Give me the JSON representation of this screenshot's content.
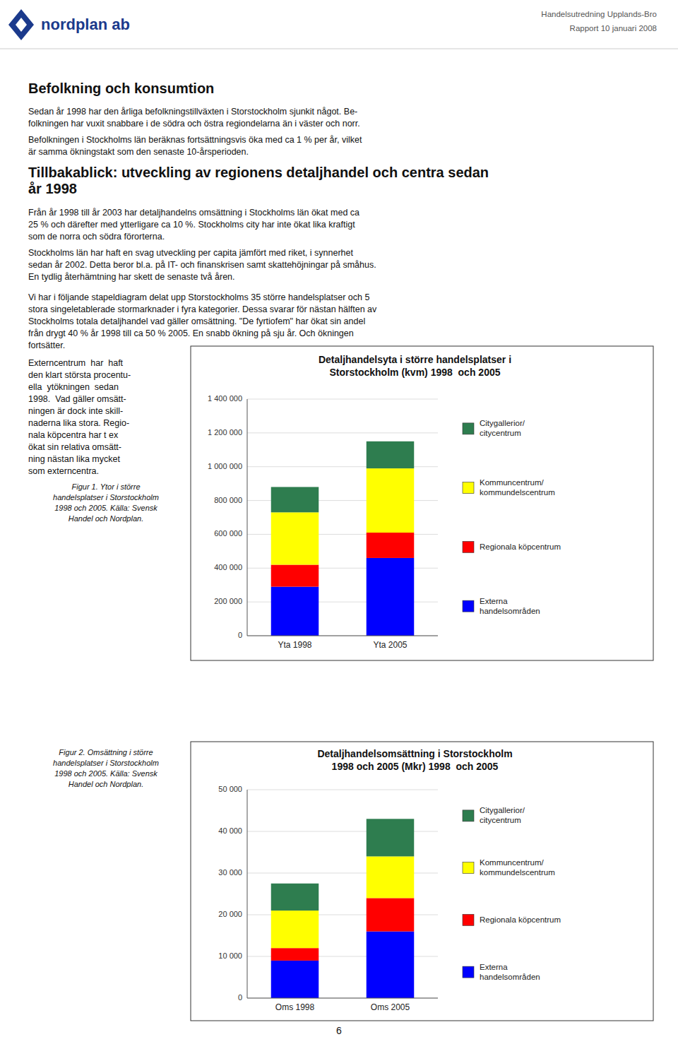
{
  "page": {
    "logo": "nordplan ab",
    "header_right_line1": "Handelsutredning Upplands-Bro",
    "header_right_line2": "Rapport 10 januari 2008",
    "heading": "Befolkning och konsumtion",
    "para1_lines": [
      "Sedan år 1998 har den årliga befolkningstillväxten i Storstockholm sjunkit något. Be-",
      "folkningen har vuxit snabbare i de södra och östra regiondelarna än i väster och norr."
    ],
    "para2_lines": [
      "Befolkningen i Stockholms län beräknas fortsättningsvis öka med ca 1 % per år, vilket",
      "är samma ökningstakt som den senaste 10-årsperioden."
    ],
    "section_heading_line1": "Tillbakablick: utveckling av regionens detaljhandel och centra sedan",
    "section_heading_line2": "år 1998",
    "para3_lines": [
      "Från år 1998 till år 2003 har detaljhandelns omsättning i Stockholms län ökat med ca",
      "25 % och därefter med ytterligare ca 10 %. Stockholms city har inte ökat lika kraftigt",
      "som de norra och södra förorterna."
    ],
    "para4_lines": [
      "Stockholms län har haft en svag utveckling per capita jämfört med riket, i synnerhet",
      "sedan år 2002. Detta beror bl.a. på IT- och finanskrisen samt skattehöjningar på småhus.",
      "En tydlig återhämtning har skett de senaste två åren."
    ],
    "para5_lines": [
      "Vi har i följande stapeldiagram delat upp Storstockholms 35 större handelsplatser och 5",
      "stora singeletablerade stormarknader i fyra kategorier. Dessa svarar för nästan hälften av",
      "Stockholms totala detaljhandel vad gäller omsättning. \"De fyrtiofem\" har ökat sin andel",
      "från drygt 40 % år 1998 till ca 50 % 2005. En snabb ökning på sju år. Och ökningen",
      "fortsätter."
    ],
    "left_col1_lines": [
      "Externcentrum  har  haft",
      "den klart största procentu-",
      "ella  ytökningen  sedan",
      "1998.  Vad gäller omsätt-",
      "ningen är dock inte skill-",
      "naderna lika stora. Regio-",
      "nala köpcentra har t ex",
      "ökat sin relativa omsätt-",
      "ning nästan lika mycket",
      "som externcentra."
    ],
    "fig1_caption_lines": [
      "Figur 1. Ytor i större",
      "handelsplatser i Storstockholm",
      "1998 och 2005. Källa: Svensk",
      "Handel och Nordplan."
    ],
    "fig2_caption_lines": [
      "Figur 2. Omsättning i större",
      "handelsplatser i Storstockholm",
      "1998 och 2005. Källa: Svensk",
      "Handel och Nordplan."
    ],
    "page_number": "6"
  },
  "chart_data": [
    {
      "type": "bar",
      "stacked": true,
      "grid": true,
      "legend": "right",
      "title": "Detaljhandelsyta i större handelsplatser i\nStorstockholm (kvm) 1998  och 2005",
      "categories": [
        "Yta 1998",
        "Yta 2005"
      ],
      "series": [
        {
          "name": "Externa\nhandelsområden",
          "color": "#0000FF",
          "values": [
            290000,
            460000
          ]
        },
        {
          "name": "Regionala köpcentrum",
          "color": "#FF0000",
          "values": [
            130000,
            150000
          ]
        },
        {
          "name": "Kommuncentrum/\nkommundelscentrum",
          "color": "#FFFF00",
          "values": [
            310000,
            380000
          ]
        },
        {
          "name": "Citygallerior/\ncitycentrum",
          "color": "#2E7D4F",
          "values": [
            150000,
            160000
          ]
        }
      ],
      "ylim": [
        0,
        1400000
      ],
      "yticks": [
        0,
        {
          "value": 200000,
          "label": "200 000"
        },
        {
          "value": 400000,
          "label": "400 000"
        },
        {
          "value": 600000,
          "label": "600 000"
        },
        {
          "value": 800000,
          "label": "800 000"
        },
        {
          "value": 1000000,
          "label": "1 000 000"
        },
        {
          "value": 1200000,
          "label": "1 200 000"
        },
        {
          "value": 1400000,
          "label": "1 400 000"
        }
      ]
    },
    {
      "type": "bar",
      "stacked": true,
      "grid": true,
      "legend": "right",
      "title": "Detaljhandelsomsättning i Storstockholm\n1998 och 2005 (Mkr) 1998  och 2005",
      "categories": [
        "Oms 1998",
        "Oms 2005"
      ],
      "series": [
        {
          "name": "Externa\nhandelsområden",
          "color": "#0000FF",
          "values": [
            9000,
            16000
          ]
        },
        {
          "name": "Regionala köpcentrum",
          "color": "#FF0000",
          "values": [
            3000,
            8000
          ]
        },
        {
          "name": "Kommuncentrum/\nkommundelscentrum",
          "color": "#FFFF00",
          "values": [
            9000,
            10000
          ]
        },
        {
          "name": "Citygallerior/\ncitycentrum",
          "color": "#2E7D4F",
          "values": [
            6500,
            9000
          ]
        }
      ],
      "ylim": [
        0,
        50000
      ],
      "yticks": [
        0,
        {
          "value": 10000,
          "label": "10 000"
        },
        {
          "value": 20000,
          "label": "20 000"
        },
        {
          "value": 30000,
          "label": "30 000"
        },
        {
          "value": 40000,
          "label": "40 000"
        },
        {
          "value": 50000,
          "label": "50 000"
        }
      ]
    }
  ]
}
